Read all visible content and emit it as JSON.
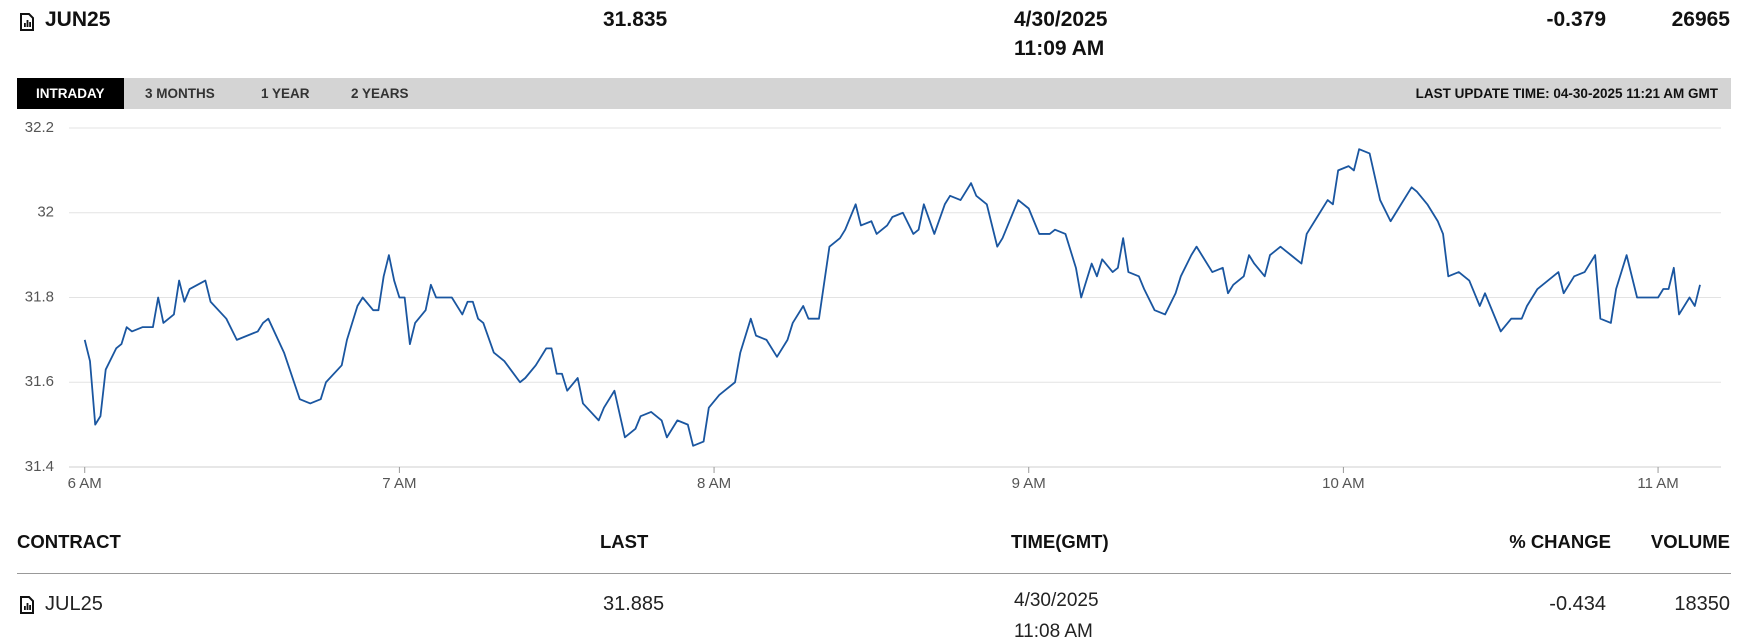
{
  "quote": {
    "contract": "JUN25",
    "last": 31.835,
    "date": "4/30/2025",
    "time": "11:09 AM",
    "change": -0.379,
    "volume": 26965
  },
  "tabs": [
    "INTRADAY",
    "3 MONTHS",
    "1 YEAR",
    "2 YEARS"
  ],
  "last_update": "LAST UPDATE TIME: 04-30-2025 11:21 AM GMT",
  "chart_data": {
    "type": "line",
    "x": [
      0,
      1,
      2,
      3,
      4,
      6,
      7,
      8,
      9,
      11,
      13,
      14,
      15,
      17,
      18,
      19,
      20,
      23,
      24,
      27,
      29,
      33,
      34,
      35,
      38,
      41,
      43,
      45,
      46,
      49,
      50,
      52,
      53,
      55,
      56,
      57,
      58,
      59,
      60,
      61,
      62,
      63,
      65,
      66,
      67,
      70,
      72,
      73,
      74,
      75,
      76,
      78,
      80,
      83,
      84,
      86,
      88,
      89,
      90,
      91,
      92,
      94,
      95,
      98,
      99,
      101,
      103,
      105,
      106,
      108,
      110,
      111,
      113,
      115,
      116,
      118,
      119,
      121,
      122,
      124,
      125,
      127,
      128,
      130,
      132,
      134,
      135,
      137,
      138,
      140,
      142,
      144,
      145,
      147,
      148,
      150,
      151,
      153,
      154,
      156,
      158,
      159,
      160,
      162,
      164,
      165,
      167,
      169,
      170,
      172,
      174,
      175,
      176,
      178,
      180,
      181,
      182,
      184,
      185,
      187,
      189,
      190,
      192,
      193,
      194,
      196,
      197,
      198,
      199,
      201,
      202,
      204,
      206,
      208,
      209,
      211,
      212,
      213,
      215,
      217,
      218,
      219,
      221,
      222,
      223,
      225,
      226,
      228,
      229,
      230,
      232,
      233,
      235,
      237,
      238,
      239,
      241,
      242,
      243,
      245,
      247,
      249,
      251,
      253,
      254,
      256,
      258,
      259,
      260,
      262,
      264,
      266,
      267,
      270,
      272,
      274,
      275,
      277,
      279,
      281,
      282,
      284,
      286,
      288,
      289,
      291,
      292,
      294,
      296,
      298,
      300,
      301,
      302,
      303,
      304,
      306,
      307,
      308
    ],
    "series": [
      {
        "name": "JUN25",
        "color": "#1a56a0",
        "values": [
          31.7,
          31.65,
          31.5,
          31.52,
          31.63,
          31.68,
          31.69,
          31.73,
          31.72,
          31.73,
          31.73,
          31.8,
          31.74,
          31.76,
          31.84,
          31.79,
          31.82,
          31.84,
          31.79,
          31.75,
          31.7,
          31.72,
          31.74,
          31.75,
          31.67,
          31.56,
          31.55,
          31.56,
          31.6,
          31.64,
          31.7,
          31.78,
          31.8,
          31.77,
          31.77,
          31.85,
          31.9,
          31.84,
          31.8,
          31.8,
          31.69,
          31.74,
          31.77,
          31.83,
          31.8,
          31.8,
          31.76,
          31.79,
          31.79,
          31.75,
          31.74,
          31.67,
          31.65,
          31.6,
          31.61,
          31.64,
          31.68,
          31.68,
          31.62,
          31.62,
          31.58,
          31.61,
          31.55,
          31.51,
          31.54,
          31.58,
          31.47,
          31.49,
          31.52,
          31.53,
          31.51,
          31.47,
          31.51,
          31.5,
          31.45,
          31.46,
          31.54,
          31.57,
          31.58,
          31.6,
          31.67,
          31.75,
          31.71,
          31.7,
          31.66,
          31.7,
          31.74,
          31.78,
          31.75,
          31.75,
          31.92,
          31.94,
          31.96,
          32.02,
          31.97,
          31.98,
          31.95,
          31.97,
          31.99,
          32.0,
          31.95,
          31.96,
          32.02,
          31.95,
          32.02,
          32.04,
          32.03,
          32.07,
          32.04,
          32.02,
          31.92,
          31.94,
          31.97,
          32.03,
          32.01,
          31.98,
          31.95,
          31.95,
          31.96,
          31.95,
          31.87,
          31.8,
          31.88,
          31.85,
          31.89,
          31.86,
          31.87,
          31.94,
          31.86,
          31.85,
          31.82,
          31.77,
          31.76,
          31.81,
          31.85,
          31.9,
          31.92,
          31.9,
          31.86,
          31.87,
          31.81,
          31.83,
          31.85,
          31.9,
          31.88,
          31.85,
          31.9,
          31.92,
          31.91,
          31.9,
          31.88,
          31.95,
          31.99,
          32.03,
          32.02,
          32.1,
          32.11,
          32.1,
          32.15,
          32.14,
          32.03,
          31.98,
          32.02,
          32.06,
          32.05,
          32.02,
          31.98,
          31.95,
          31.85,
          31.86,
          31.84,
          31.78,
          31.81,
          31.72,
          31.75,
          31.75,
          31.78,
          31.82,
          31.84,
          31.86,
          31.81,
          31.85,
          31.86,
          31.9,
          31.75,
          31.74,
          31.82,
          31.9,
          31.8,
          31.8,
          31.8,
          31.82,
          31.82,
          31.87,
          31.76,
          31.8,
          31.78,
          31.83
        ]
      }
    ],
    "xlim": [
      -3,
      312
    ],
    "xticks": [
      {
        "value": 0,
        "label": "6 AM"
      },
      {
        "value": 60,
        "label": "7 AM"
      },
      {
        "value": 120,
        "label": "8 AM"
      },
      {
        "value": 180,
        "label": "9 AM"
      },
      {
        "value": 240,
        "label": "10 AM"
      },
      {
        "value": 300,
        "label": "11 AM"
      }
    ],
    "ylim": [
      31.4,
      32.2
    ],
    "yticks": [
      31.4,
      31.6,
      31.8,
      32,
      32.2
    ],
    "grid": true
  },
  "table": {
    "headers": [
      "CONTRACT",
      "LAST",
      "TIME(GMT)",
      "% CHANGE",
      "VOLUME"
    ],
    "rows": [
      {
        "contract": "JUL25",
        "last": 31.885,
        "date": "4/30/2025",
        "time": "11:08 AM",
        "change": -0.434,
        "volume": 18350
      }
    ]
  }
}
